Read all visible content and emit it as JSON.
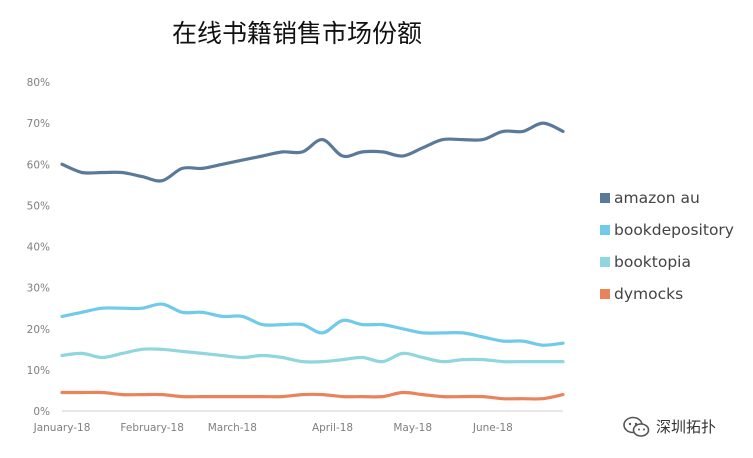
{
  "chart_data": {
    "type": "line",
    "title": "在线书籍销售市场份额",
    "xlabel": "",
    "ylabel": "",
    "ylim": [
      0,
      80
    ],
    "y_ticks": [
      "0%",
      "10%",
      "20%",
      "30%",
      "40%",
      "50%",
      "60%",
      "70%",
      "80%"
    ],
    "x_tick_labels": [
      {
        "label": "January-18",
        "x": 0
      },
      {
        "label": "February-18",
        "x": 4.5
      },
      {
        "label": "March-18",
        "x": 8.5
      },
      {
        "label": "April-18",
        "x": 13.5
      },
      {
        "label": "May-18",
        "x": 17.5
      },
      {
        "label": "June-18",
        "x": 21.5
      }
    ],
    "grid": false,
    "legend_position": "right",
    "x": [
      0,
      1,
      2,
      3,
      4,
      5,
      6,
      7,
      8,
      9,
      10,
      11,
      12,
      13,
      14,
      15,
      16,
      17,
      18,
      19,
      20,
      21,
      22,
      23,
      24,
      25
    ],
    "series": [
      {
        "name": "amazon au",
        "color": "#5b7a99",
        "values": [
          60,
          58,
          58,
          58,
          57,
          56,
          59,
          59,
          60,
          61,
          62,
          63,
          63,
          66,
          62,
          63,
          63,
          62,
          64,
          66,
          66,
          66,
          68,
          68,
          70,
          68
        ]
      },
      {
        "name": "bookdepository",
        "color": "#6fcbe9",
        "values": [
          23,
          24,
          25,
          25,
          25,
          26,
          24,
          24,
          23,
          23,
          21,
          21,
          21,
          19,
          22,
          21,
          21,
          20,
          19,
          19,
          19,
          18,
          17,
          17,
          16,
          16.5
        ]
      },
      {
        "name": "booktopia",
        "color": "#8fd6df",
        "values": [
          13.5,
          14,
          13,
          14,
          15,
          15,
          14.5,
          14,
          13.5,
          13,
          13.5,
          13,
          12,
          12,
          12.5,
          13,
          12,
          14,
          13,
          12,
          12.5,
          12.5,
          12,
          12,
          12,
          12
        ]
      },
      {
        "name": "dymocks",
        "color": "#e8835c",
        "values": [
          4.5,
          4.5,
          4.5,
          4,
          4,
          4,
          3.5,
          3.5,
          3.5,
          3.5,
          3.5,
          3.5,
          4,
          4,
          3.5,
          3.5,
          3.5,
          4.5,
          4,
          3.5,
          3.5,
          3.5,
          3,
          3,
          3,
          4
        ]
      }
    ]
  },
  "watermark": {
    "text": "深圳拓扑",
    "icon": "wechat-icon"
  }
}
